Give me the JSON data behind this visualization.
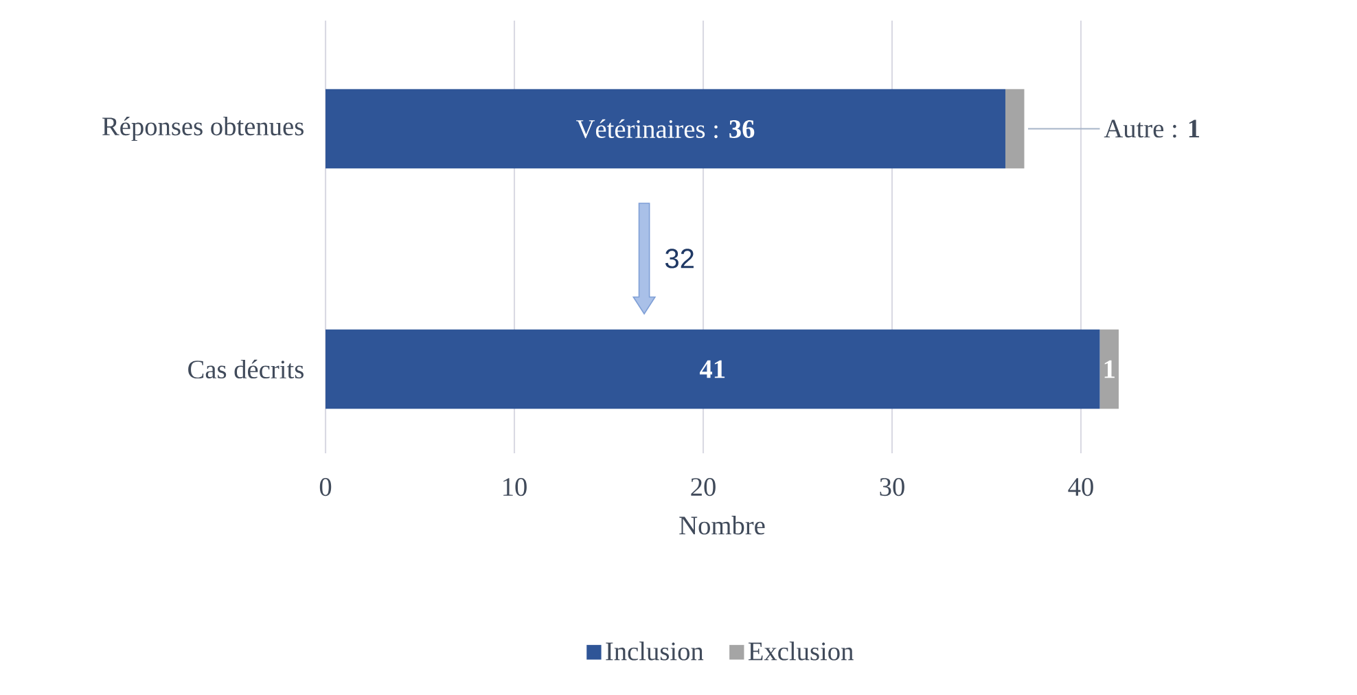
{
  "chart_data": {
    "type": "bar",
    "orientation": "horizontal",
    "stacked": true,
    "categories": [
      "Réponses obtenues",
      "Cas décrits"
    ],
    "series": [
      {
        "name": "Inclusion",
        "color": "#2f5597",
        "values": [
          36,
          41
        ],
        "value_labels": [
          "Vétérinaires : **36**",
          "**41**"
        ]
      },
      {
        "name": "Exclusion",
        "color": "#a5a5a5",
        "values": [
          1,
          1
        ],
        "value_labels": [
          "Autre : **1**",
          "**1**"
        ]
      }
    ],
    "xlabel": "Nombre",
    "xlim": [
      0,
      42
    ],
    "xticks": [
      0,
      10,
      20,
      30,
      40
    ],
    "grid": "x",
    "legend": "bottom",
    "annotations": [
      "32"
    ]
  }
}
